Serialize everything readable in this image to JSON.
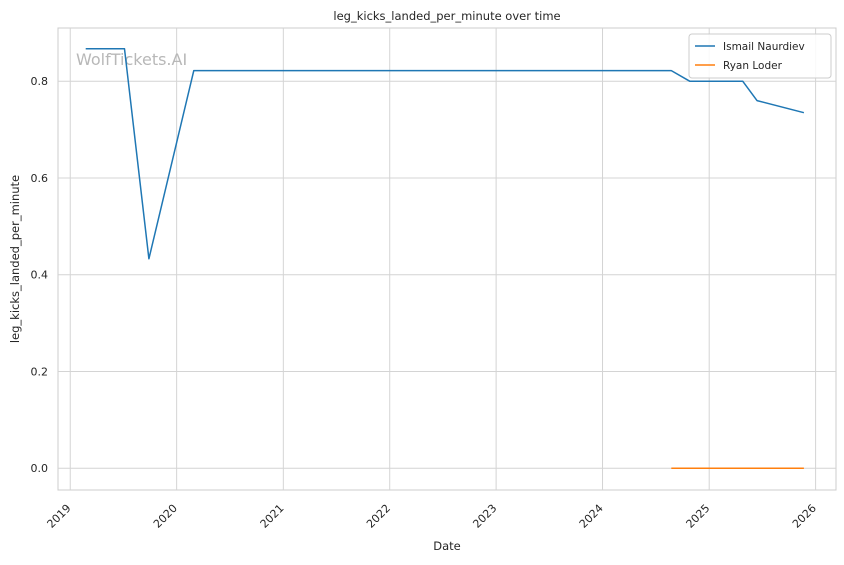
{
  "chart_data": {
    "type": "line",
    "title": "leg_kicks_landed_per_minute over time",
    "xlabel": "Date",
    "ylabel": "leg_kicks_landed_per_minute",
    "x_ticks": [
      "2019",
      "2020",
      "2021",
      "2022",
      "2023",
      "2024",
      "2025",
      "2026"
    ],
    "y_ticks": [
      "0.0",
      "0.2",
      "0.4",
      "0.6",
      "0.8"
    ],
    "xlim": [
      "2018-11-20",
      "2026-03-12"
    ],
    "ylim": [
      -0.045,
      0.91
    ],
    "grid": true,
    "legend_position": "top-right",
    "watermark": "WolfTickets.AI",
    "series": [
      {
        "name": "Ismail Naurdiev",
        "color": "#1f77b4",
        "x": [
          "2019-02-23",
          "2019-07-06",
          "2019-09-28",
          "2020-02-29",
          "2024-08-24",
          "2024-10-26",
          "2025-04-26",
          "2025-06-14",
          "2025-11-22"
        ],
        "y": [
          0.867,
          0.867,
          0.433,
          0.822,
          0.822,
          0.8,
          0.8,
          0.76,
          0.735
        ]
      },
      {
        "name": "Ryan Loder",
        "color": "#ff7f0e",
        "x": [
          "2024-08-24",
          "2025-11-22"
        ],
        "y": [
          0.0,
          0.0
        ]
      }
    ]
  }
}
